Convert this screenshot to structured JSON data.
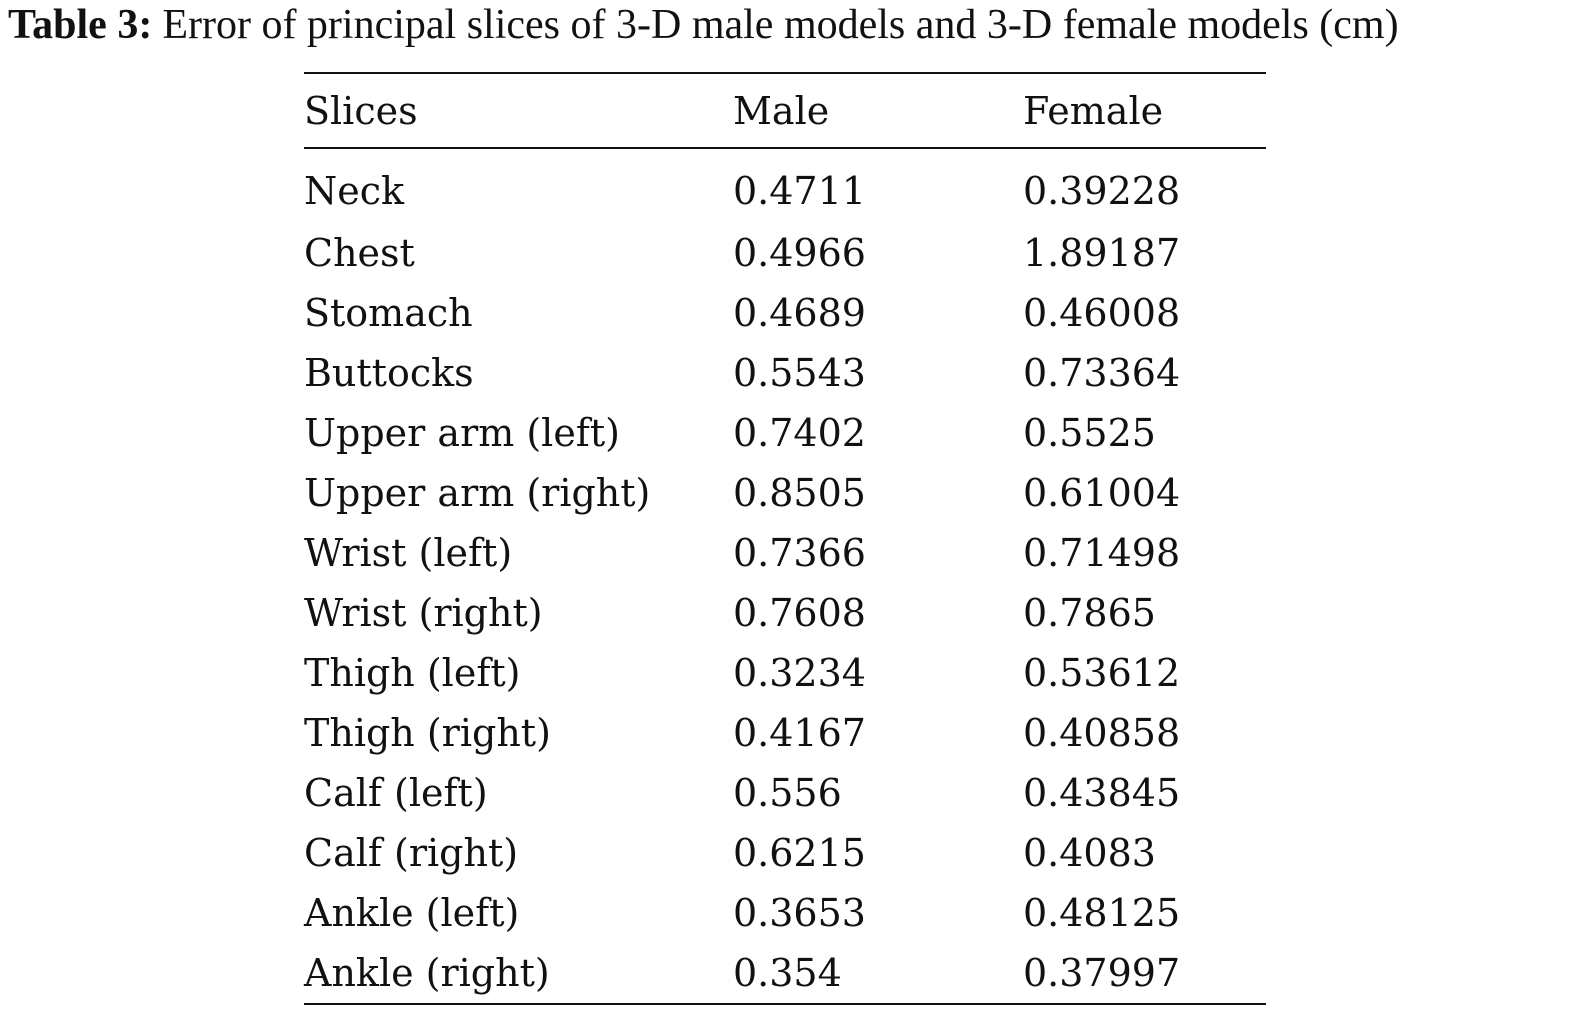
{
  "caption": {
    "label": "Table 3:",
    "text": "Error of principal slices of 3-D male models and 3-D female models (cm)"
  },
  "table": {
    "headers": [
      "Slices",
      "Male",
      "Female"
    ],
    "rows": [
      [
        "Neck",
        "0.4711",
        "0.39228"
      ],
      [
        "Chest",
        "0.4966",
        "1.89187"
      ],
      [
        "Stomach",
        "0.4689",
        "0.46008"
      ],
      [
        "Buttocks",
        "0.5543",
        "0.73364"
      ],
      [
        "Upper arm (left)",
        "0.7402",
        "0.5525"
      ],
      [
        "Upper arm (right)",
        "0.8505",
        "0.61004"
      ],
      [
        "Wrist (left)",
        "0.7366",
        "0.71498"
      ],
      [
        "Wrist (right)",
        "0.7608",
        "0.7865"
      ],
      [
        "Thigh (left)",
        "0.3234",
        "0.53612"
      ],
      [
        "Thigh (right)",
        "0.4167",
        "0.40858"
      ],
      [
        "Calf (left)",
        "0.556",
        "0.43845"
      ],
      [
        "Calf (right)",
        "0.6215",
        "0.4083"
      ],
      [
        "Ankle (left)",
        "0.3653",
        "0.48125"
      ],
      [
        "Ankle (right)",
        "0.354",
        "0.37997"
      ]
    ]
  }
}
